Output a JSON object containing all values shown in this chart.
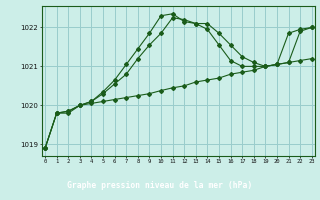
{
  "title": "Graphe pression niveau de la mer (hPa)",
  "background_color": "#cceee8",
  "plot_bg": "#cceee8",
  "grid_color": "#99cccc",
  "line_color": "#1a5c1a",
  "border_color": "#1a5c1a",
  "label_bg": "#1a5c1a",
  "label_fg": "#ffffff",
  "x_labels": [
    "0",
    "1",
    "2",
    "3",
    "4",
    "5",
    "6",
    "7",
    "8",
    "9",
    "10",
    "11",
    "12",
    "13",
    "14",
    "15",
    "16",
    "17",
    "18",
    "19",
    "20",
    "21",
    "22",
    "23"
  ],
  "ylim": [
    1018.7,
    1022.55
  ],
  "yticks": [
    1019,
    1020,
    1021,
    1022
  ],
  "series1": [
    1018.9,
    1019.8,
    1019.8,
    1020.0,
    1020.1,
    1020.3,
    1020.55,
    1020.8,
    1021.2,
    1021.55,
    1021.85,
    1022.25,
    1022.2,
    1022.1,
    1021.95,
    1021.55,
    1021.15,
    1021.0,
    1021.0,
    1021.0,
    1021.05,
    1021.1,
    1021.9,
    1022.0
  ],
  "series2": [
    1018.9,
    1019.8,
    1019.85,
    1020.0,
    1020.1,
    1020.35,
    1020.65,
    1021.05,
    1021.45,
    1021.85,
    1022.3,
    1022.35,
    1022.15,
    1022.1,
    1022.1,
    1021.85,
    1021.55,
    1021.25,
    1021.1,
    1021.0,
    1021.05,
    1021.85,
    1021.95,
    1022.0
  ],
  "series3": [
    1018.9,
    1019.8,
    1019.85,
    1020.0,
    1020.05,
    1020.1,
    1020.15,
    1020.2,
    1020.25,
    1020.3,
    1020.38,
    1020.45,
    1020.5,
    1020.6,
    1020.65,
    1020.7,
    1020.8,
    1020.85,
    1020.9,
    1021.0,
    1021.05,
    1021.1,
    1021.15,
    1021.2
  ]
}
